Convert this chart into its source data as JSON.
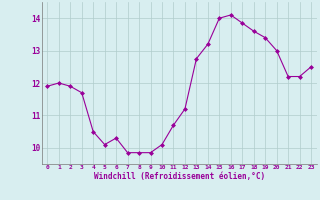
{
  "hours": [
    0,
    1,
    2,
    3,
    4,
    5,
    6,
    7,
    8,
    9,
    10,
    11,
    12,
    13,
    14,
    15,
    16,
    17,
    18,
    19,
    20,
    21,
    22,
    23
  ],
  "values": [
    11.9,
    12.0,
    11.9,
    11.7,
    10.5,
    10.1,
    10.3,
    9.85,
    9.85,
    9.85,
    10.1,
    10.7,
    11.2,
    12.75,
    13.2,
    14.0,
    14.1,
    13.85,
    13.6,
    13.4,
    13.0,
    12.2,
    12.2,
    12.5
  ],
  "line_color": "#990099",
  "marker": "D",
  "marker_size": 2,
  "bg_color": "#d8eef0",
  "grid_color": "#b0cccc",
  "xlabel": "Windchill (Refroidissement éolien,°C)",
  "xlabel_color": "#990099",
  "tick_color": "#990099",
  "ylim": [
    9.5,
    14.5
  ],
  "yticks": [
    10,
    11,
    12,
    13,
    14
  ],
  "xticks": [
    0,
    1,
    2,
    3,
    4,
    5,
    6,
    7,
    8,
    9,
    10,
    11,
    12,
    13,
    14,
    15,
    16,
    17,
    18,
    19,
    20,
    21,
    22,
    23
  ]
}
